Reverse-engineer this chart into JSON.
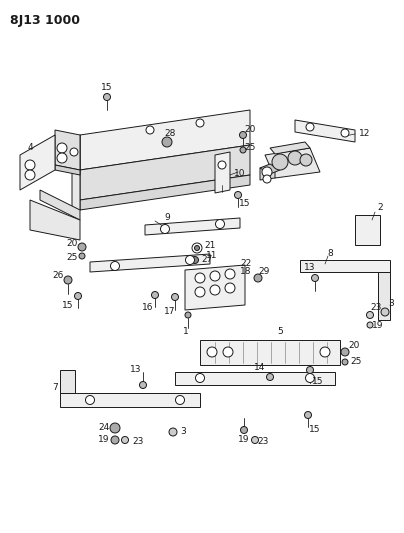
{
  "title": "8J13 1000",
  "bg_color": "#ffffff",
  "line_color": "#1a1a1a",
  "title_fontsize": 9,
  "label_fontsize": 6.5,
  "fig_width": 4.04,
  "fig_height": 5.33,
  "dpi": 100
}
